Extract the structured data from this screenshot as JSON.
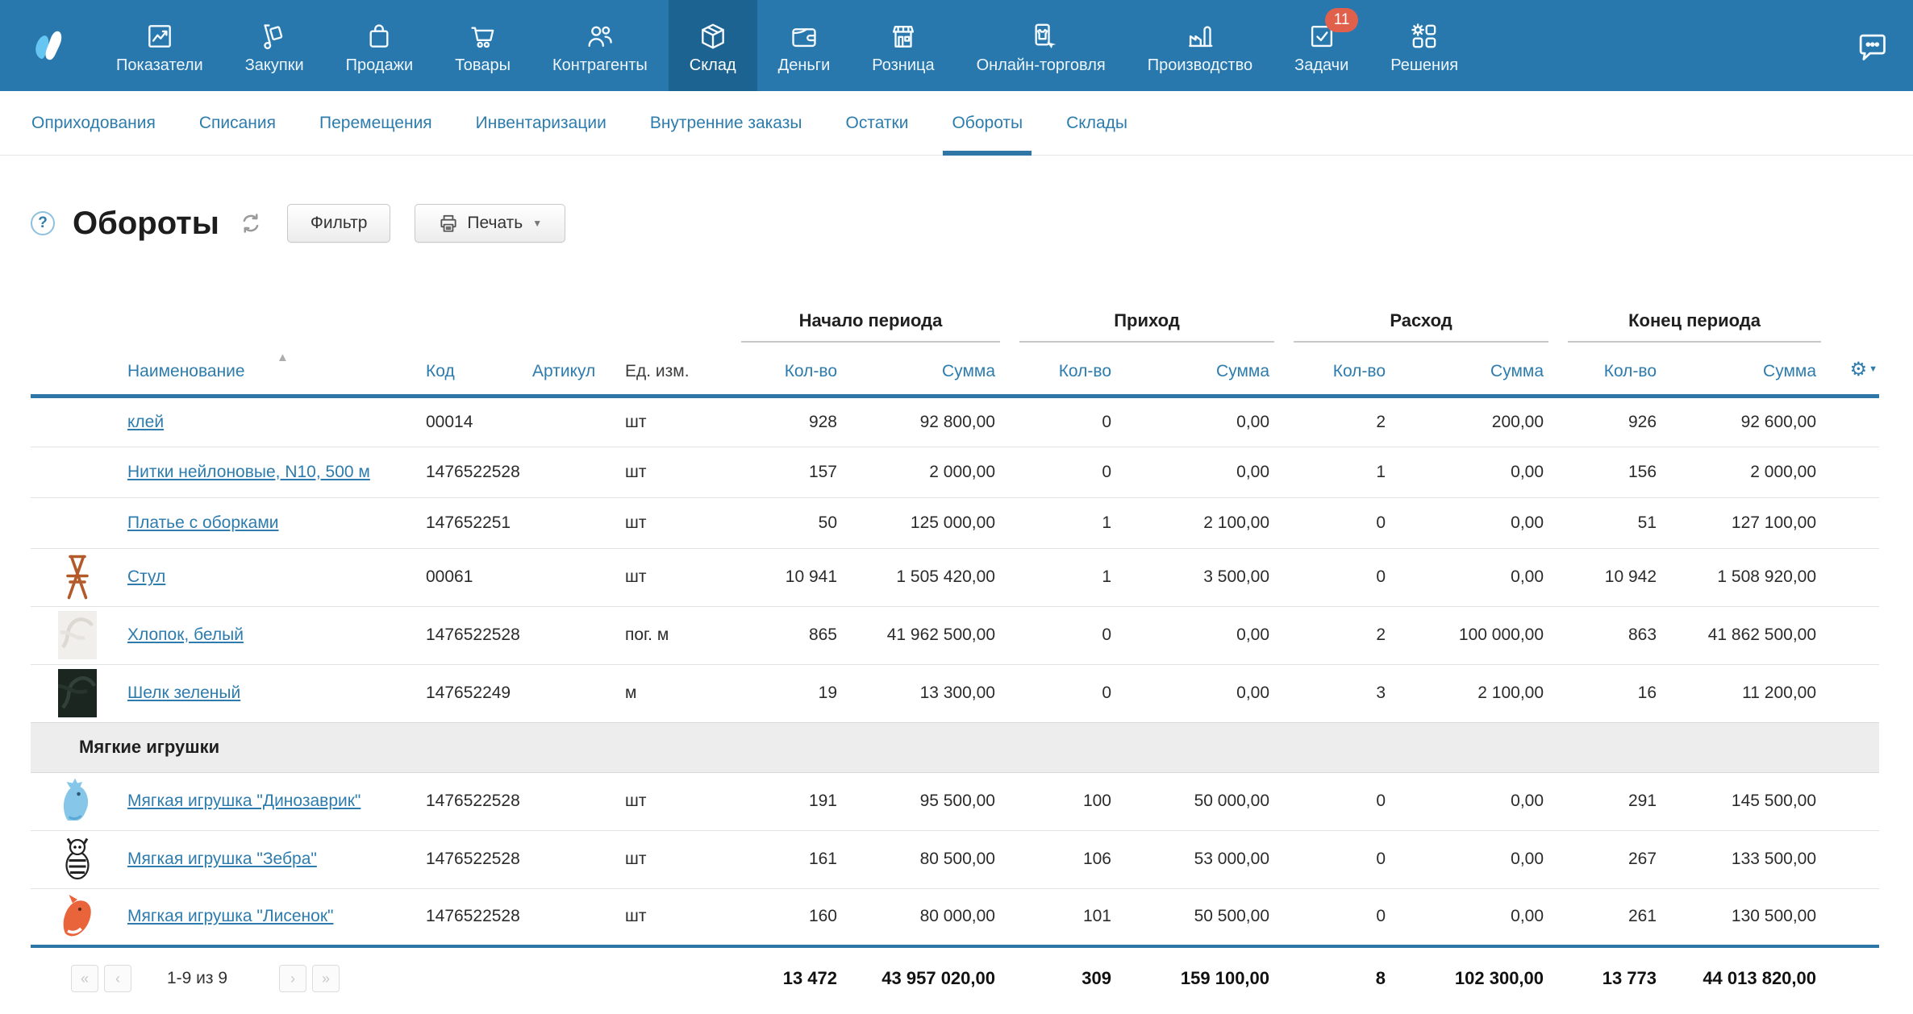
{
  "topnav": {
    "logo_icon": "moysklad-logo",
    "chat_icon": "chat-icon",
    "items": [
      {
        "label": "Показатели",
        "icon": "metrics-icon"
      },
      {
        "label": "Закупки",
        "icon": "purchases-icon"
      },
      {
        "label": "Продажи",
        "icon": "sales-icon"
      },
      {
        "label": "Товары",
        "icon": "goods-icon"
      },
      {
        "label": "Контрагенты",
        "icon": "partners-icon"
      },
      {
        "label": "Склад",
        "icon": "warehouse-icon",
        "active": true
      },
      {
        "label": "Деньги",
        "icon": "money-icon"
      },
      {
        "label": "Розница",
        "icon": "retail-icon"
      },
      {
        "label": "Онлайн-торговля",
        "icon": "online-trade-icon"
      },
      {
        "label": "Производство",
        "icon": "production-icon"
      },
      {
        "label": "Задачи",
        "icon": "tasks-icon",
        "badge": "11"
      },
      {
        "label": "Решения",
        "icon": "solutions-icon"
      }
    ]
  },
  "subnav": {
    "items": [
      {
        "label": "Оприходования"
      },
      {
        "label": "Списания"
      },
      {
        "label": "Перемещения"
      },
      {
        "label": "Инвентаризации"
      },
      {
        "label": "Внутренние заказы"
      },
      {
        "label": "Остатки"
      },
      {
        "label": "Обороты",
        "active": true
      },
      {
        "label": "Склады"
      }
    ]
  },
  "page": {
    "title": "Обороты",
    "help_icon": "help-icon",
    "refresh_icon": "refresh-icon",
    "filter_button": "Фильтр",
    "print_button": "Печать",
    "print_icon": "printer-icon"
  },
  "colors": {
    "topnav_bg": "#2878ae",
    "topnav_active_bg": "#1d6391",
    "accent_blue": "#2d7cad",
    "header_rule_blue": "#2d76a6",
    "badge_red": "#e0604c"
  },
  "table": {
    "sort_icon": "▲",
    "gear_icon": "⚙",
    "groups": [
      "Начало периода",
      "Приход",
      "Расход",
      "Конец периода"
    ],
    "columns": {
      "name": "Наименование",
      "code": "Код",
      "article": "Артикул",
      "unit": "Ед. изм.",
      "qty": "Кол-во",
      "sum": "Сумма"
    },
    "rows": [
      {
        "name": "клей",
        "code": "00014",
        "article": "",
        "unit": "шт",
        "thumb": null,
        "values": [
          "928",
          "92 800,00",
          "0",
          "0,00",
          "2",
          "200,00",
          "926",
          "92 600,00"
        ]
      },
      {
        "name": "Нитки нейлоновые, N10, 500 м",
        "code": "1476522528",
        "article": "",
        "unit": "шт",
        "thumb": null,
        "values": [
          "157",
          "2 000,00",
          "0",
          "0,00",
          "1",
          "0,00",
          "156",
          "2 000,00"
        ]
      },
      {
        "name": "Платье с оборками",
        "code": "147652251",
        "article": "",
        "unit": "шт",
        "thumb": null,
        "values": [
          "50",
          "125 000,00",
          "1",
          "2 100,00",
          "0",
          "0,00",
          "51",
          "127 100,00"
        ]
      },
      {
        "name": "Стул",
        "code": "00061",
        "article": "",
        "unit": "шт",
        "thumb": "chair",
        "values": [
          "10 941",
          "1 505 420,00",
          "1",
          "3 500,00",
          "0",
          "0,00",
          "10 942",
          "1 508 920,00"
        ]
      },
      {
        "name": "Хлопок, белый",
        "code": "1476522528",
        "article": "",
        "unit": "пог. м",
        "thumb": "cotton",
        "values": [
          "865",
          "41 962 500,00",
          "0",
          "0,00",
          "2",
          "100 000,00",
          "863",
          "41 862 500,00"
        ]
      },
      {
        "name": "Шелк зеленый",
        "code": "147652249",
        "article": "",
        "unit": "м",
        "thumb": "silk",
        "values": [
          "19",
          "13 300,00",
          "0",
          "0,00",
          "3",
          "2 100,00",
          "16",
          "11 200,00"
        ]
      },
      {
        "group": "Мягкие игрушки"
      },
      {
        "name": "Мягкая игрушка \"Динозаврик\"",
        "code": "1476522528",
        "article": "",
        "unit": "шт",
        "thumb": "dino",
        "values": [
          "191",
          "95 500,00",
          "100",
          "50 000,00",
          "0",
          "0,00",
          "291",
          "145 500,00"
        ]
      },
      {
        "name": "Мягкая игрушка \"Зебра\"",
        "code": "1476522528",
        "article": "",
        "unit": "шт",
        "thumb": "zebra",
        "values": [
          "161",
          "80 500,00",
          "106",
          "53 000,00",
          "0",
          "0,00",
          "267",
          "133 500,00"
        ]
      },
      {
        "name": "Мягкая игрушка \"Лисенок\"",
        "code": "1476522528",
        "article": "",
        "unit": "шт",
        "thumb": "fox",
        "values": [
          "160",
          "80 000,00",
          "101",
          "50 500,00",
          "0",
          "0,00",
          "261",
          "130 500,00"
        ]
      }
    ],
    "totals": [
      "13 472",
      "43 957 020,00",
      "309",
      "159 100,00",
      "8",
      "102 300,00",
      "13 773",
      "44 013 820,00"
    ]
  },
  "footer": {
    "pagination": {
      "first": "«",
      "prev": "‹",
      "label": "1-9 из 9",
      "next": "›",
      "last": "»"
    }
  }
}
